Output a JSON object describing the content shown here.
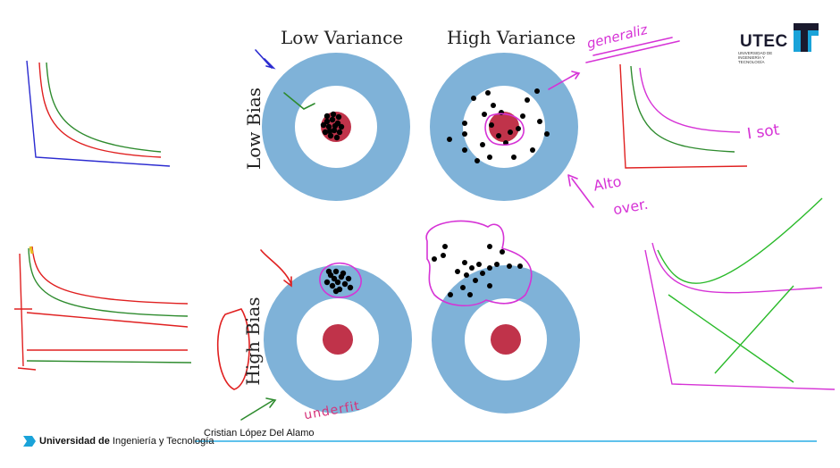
{
  "header": {
    "col_low_variance": "Low Variance",
    "col_high_variance": "High Variance",
    "row_low_bias": "Low Bias",
    "row_high_bias": "High Bias"
  },
  "logo": {
    "name": "UTEC",
    "subtitle": "UNIVERSIDAD DE INGENIERÍA Y TECNOLOGÍA"
  },
  "annotations": {
    "generalize": "generaliz",
    "i_sot": "I sot",
    "alto": "Alto",
    "over": "over.",
    "underfit": "underfit"
  },
  "footer": {
    "university_bold": "Universidad de",
    "university_rest": "Ingeniería y Tecnología",
    "author": "Cristian López Del Alamo"
  },
  "colors": {
    "ring": "#7fb2d8",
    "bullseye": "#c0334a",
    "ink_magenta": "#d633d6",
    "ink_green": "#2e8b2e",
    "ink_red": "#e02020",
    "ink_blue": "#2a2ad0",
    "footer_line": "#2aaee6"
  }
}
